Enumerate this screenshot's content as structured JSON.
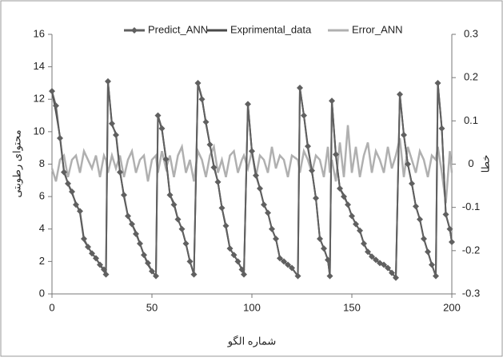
{
  "chart_data": {
    "type": "line",
    "x": [
      0,
      2,
      4,
      6,
      8,
      10,
      12,
      14,
      16,
      18,
      20,
      22,
      24,
      26,
      27,
      28,
      30,
      32,
      34,
      36,
      38,
      40,
      42,
      44,
      46,
      48,
      50,
      52,
      53,
      55,
      57,
      59,
      61,
      63,
      65,
      67,
      69,
      71,
      73,
      75,
      77,
      79,
      81,
      83,
      85,
      87,
      89,
      91,
      93,
      95,
      96,
      98,
      100,
      102,
      104,
      106,
      108,
      110,
      112,
      114,
      116,
      118,
      120,
      123,
      124,
      126,
      128,
      130,
      132,
      134,
      136,
      138,
      139,
      140,
      142,
      144,
      146,
      148,
      150,
      152,
      154,
      156,
      158,
      160,
      162,
      164,
      166,
      168,
      170,
      172,
      174,
      176,
      178,
      180,
      182,
      184,
      186,
      188,
      190,
      192,
      193,
      195,
      197,
      199,
      200
    ],
    "series": [
      {
        "name": "Predict_ANN",
        "color": "#606060",
        "marker": "diamond",
        "values": [
          12.5,
          11.6,
          9.6,
          7.5,
          6.8,
          6.3,
          5.5,
          5.1,
          3.4,
          2.9,
          2.5,
          2.2,
          1.8,
          1.5,
          1.2,
          13.1,
          10.5,
          9.8,
          7.5,
          6.1,
          4.8,
          4.3,
          3.7,
          3.1,
          2.4,
          1.9,
          1.4,
          1.1,
          11.0,
          10.2,
          8.3,
          6.1,
          5.5,
          4.6,
          4.0,
          3.1,
          2.0,
          1.2,
          13.0,
          12.0,
          10.6,
          9.2,
          7.8,
          6.9,
          5.3,
          4.2,
          2.8,
          2.4,
          2.0,
          1.5,
          1.2,
          11.7,
          8.8,
          7.3,
          6.5,
          5.5,
          5.0,
          4.0,
          3.4,
          2.2,
          2.0,
          1.8,
          1.6,
          1.1,
          12.7,
          11.0,
          9.1,
          7.6,
          5.9,
          3.4,
          2.8,
          2.1,
          1.1,
          11.9,
          8.6,
          6.5,
          6.0,
          5.5,
          4.8,
          4.3,
          3.9,
          3.1,
          2.6,
          2.3,
          2.1,
          1.9,
          1.8,
          1.6,
          1.3,
          1.0,
          12.3,
          9.8,
          8.0,
          6.8,
          5.4,
          4.6,
          3.4,
          2.6,
          1.8,
          1.1,
          13.0,
          10.2,
          4.9,
          4.0,
          3.2
        ]
      },
      {
        "name": "Exprimental_data",
        "color": "#4a4a4a",
        "values": [
          12.5,
          11.2,
          9.7,
          7.6,
          6.8,
          6.2,
          5.6,
          5.0,
          3.3,
          2.9,
          2.5,
          2.2,
          1.8,
          1.4,
          1.2,
          13.1,
          10.4,
          9.9,
          7.6,
          6.0,
          4.8,
          4.3,
          3.8,
          3.1,
          2.4,
          1.8,
          1.4,
          1.1,
          11.0,
          10.1,
          8.4,
          6.1,
          5.6,
          4.6,
          4.0,
          3.1,
          2.0,
          1.2,
          13.0,
          12.1,
          10.5,
          9.2,
          7.9,
          6.9,
          5.3,
          4.1,
          2.8,
          2.4,
          2.0,
          1.5,
          1.2,
          11.7,
          8.8,
          7.4,
          6.5,
          5.5,
          5.0,
          4.0,
          3.4,
          2.2,
          2.0,
          1.8,
          1.6,
          1.1,
          12.7,
          11.0,
          9.0,
          7.6,
          5.9,
          3.4,
          2.8,
          2.1,
          1.1,
          11.9,
          8.5,
          6.5,
          6.1,
          5.5,
          4.8,
          4.3,
          3.9,
          3.1,
          2.6,
          2.3,
          2.1,
          1.9,
          1.8,
          1.6,
          1.3,
          1.0,
          12.3,
          9.8,
          8.0,
          6.8,
          5.4,
          4.6,
          3.4,
          2.6,
          1.8,
          1.1,
          13.0,
          10.2,
          4.9,
          4.0,
          3.2
        ]
      },
      {
        "name": "Error_ANN",
        "color": "#b0b0b0",
        "axis": "y2",
        "values": [
          -0.01,
          -0.04,
          0.01,
          0.02,
          -0.03,
          0.01,
          0.02,
          -0.02,
          0.03,
          0.01,
          -0.01,
          0.02,
          -0.03,
          0.02,
          0.01,
          -0.02,
          0.02,
          -0.01,
          0.02,
          -0.03,
          0.01,
          0.03,
          -0.02,
          0.01,
          0.02,
          -0.04,
          0.01,
          0.02,
          -0.02,
          0.03,
          -0.01,
          0.02,
          -0.03,
          0.02,
          0.04,
          -0.02,
          0.01,
          -0.04,
          0.03,
          0.01,
          -0.03,
          0.02,
          0.04,
          -0.02,
          0.01,
          -0.03,
          0.02,
          0.03,
          -0.02,
          0.01,
          0.02,
          -0.01,
          0.03,
          -0.03,
          0.02,
          0.01,
          -0.02,
          0.04,
          -0.01,
          0.02,
          0.01,
          -0.03,
          0.02,
          0.01,
          -0.02,
          0.03,
          0.01,
          -0.02,
          0.02,
          0.01,
          -0.03,
          0.04,
          -0.02,
          0.01,
          -0.04,
          0.05,
          -0.03,
          0.09,
          -0.02,
          0.04,
          -0.03,
          0.02,
          0.05,
          -0.02,
          0.03,
          0.01,
          -0.02,
          0.04,
          -0.01,
          0.02,
          0.06,
          -0.03,
          0.04,
          0.01,
          -0.02,
          0.03,
          0.01,
          -0.03,
          0.02,
          0.01,
          0.04,
          -0.02,
          -0.09,
          0.03,
          -0.02
        ]
      }
    ],
    "title": null,
    "xlabel": "شماره الگو",
    "ylabel": "محتوای رطوبتی",
    "y2label": "خطا",
    "xlim": [
      0,
      200
    ],
    "xticks": [
      0,
      50,
      100,
      150,
      200
    ],
    "ylim": [
      0,
      16
    ],
    "yticks": [
      0,
      2,
      4,
      6,
      8,
      10,
      12,
      14,
      16
    ],
    "y2lim": [
      -0.3,
      0.3
    ],
    "y2ticks": [
      -0.3,
      -0.2,
      -0.1,
      0,
      0.1,
      0.2,
      0.3
    ],
    "legend": "top"
  }
}
